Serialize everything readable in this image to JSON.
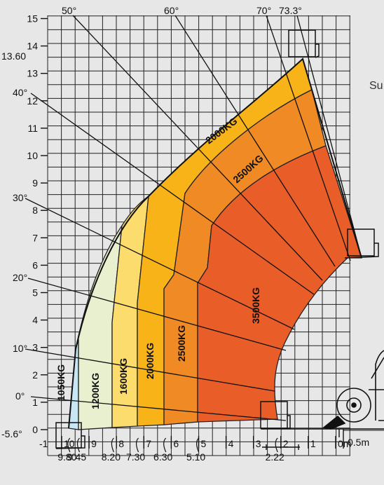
{
  "chart_data": {
    "type": "area",
    "title": "",
    "xlabel": "",
    "ylabel": "",
    "x_axis": {
      "ticks": [
        "10",
        "9",
        "8",
        "7",
        "6",
        "5",
        "4",
        "3",
        "2",
        "1",
        "0m"
      ],
      "extra_left_tick": "-1",
      "reach_marks": [
        "9.80",
        "9.45",
        "8.20",
        "7.30",
        "6.30",
        "5.10",
        "2.22"
      ],
      "scale_bar_label": "0.5m"
    },
    "y_axis": {
      "ticks": [
        "15",
        "14",
        "13",
        "12",
        "11",
        "10",
        "9",
        "8",
        "7",
        "6",
        "5",
        "4",
        "3",
        "2",
        "1",
        "0"
      ],
      "extra_labels": [
        "13.60",
        "-5.6°"
      ]
    },
    "boom_angles": [
      "0°",
      "10°",
      "20°",
      "30°",
      "40°",
      "50°",
      "60°",
      "70°",
      "73.3°"
    ],
    "load_zones": [
      {
        "label": "1050KG",
        "color": "#c8e6f4",
        "max_reach_m": 9.8
      },
      {
        "label": "1200KG",
        "color": "#e8f0cf",
        "max_reach_m": 9.45
      },
      {
        "label": "1600KG",
        "color": "#fbdc6c",
        "max_reach_m": 8.2
      },
      {
        "label": "2000KG",
        "color": "#f7b318",
        "max_reach_m": 7.3
      },
      {
        "label": "2500KG",
        "color": "#ef8a24",
        "max_reach_m": 6.3
      },
      {
        "label": "3500KG",
        "color": "#e95d29",
        "max_reach_m": 5.1
      }
    ],
    "max_height_m": 13.6,
    "grid": true
  },
  "side_text": "Su"
}
